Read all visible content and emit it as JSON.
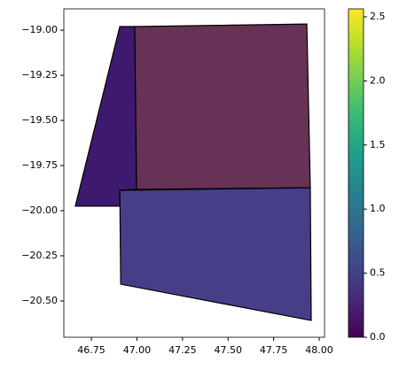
{
  "chart_data": {
    "type": "polygon-map",
    "xlim": [
      46.599,
      48.029
    ],
    "ylim": [
      -20.701,
      -18.882
    ],
    "xticks": [
      {
        "value": 46.75,
        "label": "46.75"
      },
      {
        "value": 47.0,
        "label": "47.00"
      },
      {
        "value": 47.25,
        "label": "47.25"
      },
      {
        "value": 47.5,
        "label": "47.50"
      },
      {
        "value": 47.75,
        "label": "47.75"
      },
      {
        "value": 48.0,
        "label": "48.00"
      }
    ],
    "yticks": [
      {
        "value": -19.0,
        "label": "−19.00"
      },
      {
        "value": -19.25,
        "label": "−19.25"
      },
      {
        "value": -19.5,
        "label": "−19.50"
      },
      {
        "value": -19.75,
        "label": "−19.75"
      },
      {
        "value": -20.0,
        "label": "−20.00"
      },
      {
        "value": -20.25,
        "label": "−20.25"
      },
      {
        "value": -20.5,
        "label": "−20.50"
      }
    ],
    "polygons": [
      {
        "color": "#3e1a6e",
        "coordinates": [
          [
            46.662,
            -19.975
          ],
          [
            46.906,
            -18.98
          ],
          [
            46.988,
            -18.98
          ],
          [
            46.998,
            -19.882
          ],
          [
            46.906,
            -19.887
          ],
          [
            46.906,
            -19.975
          ]
        ]
      },
      {
        "color": "#663256",
        "coordinates": [
          [
            46.988,
            -18.98
          ],
          [
            47.932,
            -18.966
          ],
          [
            47.951,
            -19.873
          ],
          [
            46.998,
            -19.882
          ]
        ]
      },
      {
        "color": "#463f88",
        "coordinates": [
          [
            46.906,
            -19.887
          ],
          [
            47.951,
            -19.873
          ],
          [
            47.956,
            -20.608
          ],
          [
            46.911,
            -20.407
          ]
        ]
      }
    ],
    "colorbar": {
      "lim": [
        0,
        2.562
      ],
      "colors": [
        "#440154",
        "#482878",
        "#3e4989",
        "#31688e",
        "#26828e",
        "#1f9e89",
        "#35b779",
        "#6ece58",
        "#b5de2b",
        "#fde725"
      ],
      "ticks": [
        {
          "value": 0,
          "label": "0.0"
        },
        {
          "value": 0.5,
          "label": "0.5"
        },
        {
          "value": 1.0,
          "label": "1.0"
        },
        {
          "value": 1.5,
          "label": "1.5"
        },
        {
          "value": 2.0,
          "label": "2.0"
        },
        {
          "value": 2.5,
          "label": "2.5"
        }
      ]
    }
  }
}
